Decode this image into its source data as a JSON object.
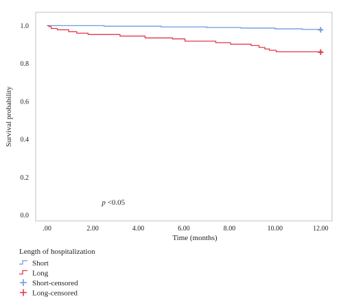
{
  "chart_data": {
    "type": "line",
    "xlabel": "Time (months)",
    "ylabel": "Survival probability",
    "xlim": [
      -0.5,
      12.5
    ],
    "ylim": [
      -0.03,
      1.07
    ],
    "x_ticks": [
      0,
      2,
      4,
      6,
      8,
      10,
      12
    ],
    "x_tick_labels": [
      ".00",
      "2.00",
      "4.00",
      "6.00",
      "8.00",
      "10.00",
      "12.00"
    ],
    "y_ticks": [
      0,
      0.2,
      0.4,
      0.6,
      0.8,
      1.0
    ],
    "y_tick_labels": [
      "0.0",
      "0.2",
      "0.4",
      "0.6",
      "0.8",
      "1.0"
    ],
    "annotation": {
      "italic": "p",
      "rest": " <0.05",
      "x": 2.4,
      "y": 0.055
    },
    "legend": {
      "title": "Length of hospitalization",
      "entries": [
        "Short",
        "Long",
        "Short-censored",
        "Long-censored"
      ],
      "placement": "bottom-left"
    },
    "series": [
      {
        "name": "Short",
        "color": "#6a9ae0",
        "step_points": [
          [
            0,
            1.0
          ],
          [
            2.5,
            0.997
          ],
          [
            5.0,
            0.993
          ],
          [
            7.0,
            0.99
          ],
          [
            8.5,
            0.987
          ],
          [
            10.0,
            0.983
          ],
          [
            11.2,
            0.98
          ],
          [
            12.0,
            0.978
          ]
        ],
        "censored": [
          [
            12.0,
            0.978
          ]
        ]
      },
      {
        "name": "Long",
        "color": "#e0384a",
        "step_points": [
          [
            0,
            1.0
          ],
          [
            0.08,
            0.995
          ],
          [
            0.18,
            0.985
          ],
          [
            0.45,
            0.978
          ],
          [
            0.95,
            0.968
          ],
          [
            1.3,
            0.96
          ],
          [
            1.8,
            0.953
          ],
          [
            3.2,
            0.945
          ],
          [
            4.3,
            0.935
          ],
          [
            5.5,
            0.93
          ],
          [
            6.05,
            0.918
          ],
          [
            7.4,
            0.91
          ],
          [
            8.05,
            0.902
          ],
          [
            8.95,
            0.895
          ],
          [
            9.3,
            0.885
          ],
          [
            9.55,
            0.877
          ],
          [
            9.75,
            0.87
          ],
          [
            10.05,
            0.862
          ],
          [
            12.0,
            0.86
          ]
        ],
        "censored": [
          [
            12.0,
            0.86
          ]
        ]
      }
    ]
  }
}
